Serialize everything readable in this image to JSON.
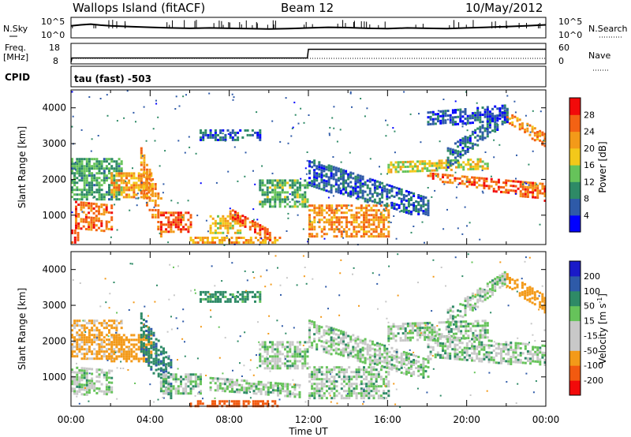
{
  "header": {
    "station": "Wallops Island (fitACF)",
    "beam": "Beam 12",
    "date": "10/May/2012"
  },
  "strip_labels": {
    "nsky": "N.Sky",
    "nsearch": "N.Search",
    "freq": "Freq.",
    "mhz": "[MHz]",
    "nave": "Nave",
    "cpid": "CPID",
    "cpid_value": "tau (fast) -503"
  },
  "colors": {
    "power": [
      "#0000ff",
      "#2e5aa8",
      "#2e8a66",
      "#66c35a",
      "#f3c81a",
      "#f39a19",
      "#f36214",
      "#f20a0a"
    ],
    "velocity": [
      "#f20a0a",
      "#f25a10",
      "#f39a19",
      "#c8c8c8",
      "#c8c8c8",
      "#66c35a",
      "#2e8a66",
      "#2e5aa8",
      "#1a1ac8"
    ]
  },
  "chart_data": [
    {
      "type": "line",
      "title": "N.Sky / N.Search",
      "yticks": [
        "10^5",
        "10^0"
      ],
      "right_yticks": [
        "10^5",
        "10^0"
      ],
      "ylim": [
        0,
        5
      ],
      "series": [
        {
          "name": "N.Sky",
          "x": [
            0,
            0.5,
            1,
            1.5,
            2,
            3,
            4,
            5,
            6,
            7,
            8,
            9,
            10,
            11,
            12,
            13,
            14,
            15,
            16,
            17,
            18,
            19,
            20,
            21,
            22,
            23,
            24
          ],
          "values": [
            3.0,
            3.3,
            3.5,
            3.2,
            3.0,
            2.8,
            2.6,
            2.4,
            2.3,
            2.4,
            2.3,
            2.2,
            2.1,
            2.2,
            2.4,
            2.6,
            2.5,
            2.3,
            2.2,
            2.4,
            2.3,
            2.2,
            2.4,
            2.6,
            2.8,
            3.0,
            3.3
          ]
        }
      ]
    },
    {
      "type": "line",
      "title": "Freq. / Nave",
      "yticks": [
        "18",
        "8"
      ],
      "right_yticks": [
        "60",
        "0"
      ],
      "ylim": [
        8,
        18
      ],
      "series": [
        {
          "name": "Freq.",
          "x": [
            0,
            0.05,
            11.95,
            12.0,
            24
          ],
          "values": [
            8,
            10.5,
            10.5,
            15.5,
            15.5
          ]
        }
      ]
    },
    {
      "type": "heatmap",
      "name": "power",
      "ylabel": "Slant Range [km]",
      "yticks": [
        "1000",
        "2000",
        "3000",
        "4000"
      ],
      "ylim": [
        180,
        4500
      ],
      "colorbar_label": "Power [dB]",
      "colorbar_ticks": [
        "4",
        "8",
        "12",
        "16",
        "20",
        "24",
        "28"
      ],
      "colorbar_range": [
        0,
        30
      ],
      "bands": [
        {
          "t0": 0.0,
          "t1": 0.3,
          "r0": 200,
          "r1": 600,
          "r_end0": 200,
          "r_end1": 600,
          "level": 27
        },
        {
          "t0": 0.2,
          "t1": 2.0,
          "r0": 600,
          "r1": 1400,
          "r_end0": 500,
          "r_end1": 1300,
          "level": 24
        },
        {
          "t0": 0.0,
          "t1": 2.5,
          "r0": 1400,
          "r1": 2600,
          "r_end0": 1400,
          "r_end1": 2600,
          "level": 11
        },
        {
          "t0": 2.0,
          "t1": 4.0,
          "r0": 1500,
          "r1": 2200,
          "r_end0": 1500,
          "r_end1": 2200,
          "level": 20
        },
        {
          "t0": 3.5,
          "t1": 4.5,
          "r0": 1600,
          "r1": 2900,
          "r_end0": 400,
          "r_end1": 1500,
          "level": 22
        },
        {
          "t0": 4.5,
          "t1": 6.0,
          "r0": 500,
          "r1": 1100,
          "r_end0": 500,
          "r_end1": 1100,
          "level": 25
        },
        {
          "t0": 6.0,
          "t1": 10.5,
          "r0": 180,
          "r1": 400,
          "r_end0": 180,
          "r_end1": 400,
          "level": 20
        },
        {
          "t0": 7.0,
          "t1": 8.5,
          "r0": 500,
          "r1": 1000,
          "r_end0": 500,
          "r_end1": 1000,
          "level": 18
        },
        {
          "t0": 8.0,
          "t1": 10.0,
          "r0": 900,
          "r1": 1200,
          "r_end0": 300,
          "r_end1": 600,
          "level": 24
        },
        {
          "t0": 6.5,
          "t1": 9.5,
          "r0": 3100,
          "r1": 3400,
          "r_end0": 3100,
          "r_end1": 3400,
          "level": 6
        },
        {
          "t0": 9.5,
          "t1": 11.9,
          "r0": 1200,
          "r1": 2000,
          "r_end0": 1200,
          "r_end1": 2000,
          "level": 12
        },
        {
          "t0": 12.0,
          "t1": 16.0,
          "r0": 400,
          "r1": 1300,
          "r_end0": 400,
          "r_end1": 1300,
          "level": 22
        },
        {
          "t0": 12.0,
          "t1": 18.0,
          "r0": 1800,
          "r1": 2600,
          "r_end0": 900,
          "r_end1": 1500,
          "level": 6
        },
        {
          "t0": 16.0,
          "t1": 21.0,
          "r0": 2200,
          "r1": 2500,
          "r_end0": 2300,
          "r_end1": 2600,
          "level": 16
        },
        {
          "t0": 18.0,
          "t1": 23.9,
          "r0": 2000,
          "r1": 2200,
          "r_end0": 1400,
          "r_end1": 1900,
          "level": 24
        },
        {
          "t0": 19.0,
          "t1": 22.0,
          "r0": 2300,
          "r1": 2900,
          "r_end0": 3600,
          "r_end1": 4000,
          "level": 7
        },
        {
          "t0": 22.0,
          "t1": 23.9,
          "r0": 3600,
          "r1": 3900,
          "r_end0": 2900,
          "r_end1": 3300,
          "level": 22
        },
        {
          "t0": 18.0,
          "t1": 22.0,
          "r0": 3500,
          "r1": 3900,
          "r_end0": 3600,
          "r_end1": 4100,
          "level": 5
        }
      ]
    },
    {
      "type": "heatmap",
      "name": "velocity",
      "ylabel": "Slant Range [km]",
      "xlabel": "Time UT",
      "xticks": [
        "00:00",
        "04:00",
        "08:00",
        "12:00",
        "16:00",
        "20:00",
        "00:00"
      ],
      "yticks": [
        "1000",
        "2000",
        "3000",
        "4000"
      ],
      "ylim": [
        180,
        4500
      ],
      "colorbar_label": "Velocity [m s-1]",
      "colorbar_label_prefix": "Velocity [m s",
      "colorbar_label_sup": "-1",
      "colorbar_label_suffix": "]",
      "colorbar_ticks": [
        "-200",
        "-100",
        "-50",
        "-15",
        "15",
        "50",
        "100",
        "200"
      ],
      "colorbar_range": [
        -250,
        250
      ],
      "bands": [
        {
          "t0": 0.0,
          "t1": 2.0,
          "r0": 500,
          "r1": 1300,
          "r_end0": 500,
          "r_end1": 1200,
          "level": 0
        },
        {
          "t0": 0.0,
          "t1": 2.5,
          "r0": 1500,
          "r1": 2600,
          "r_end0": 1500,
          "r_end1": 2600,
          "level": -60
        },
        {
          "t0": 2.0,
          "t1": 4.0,
          "r0": 1400,
          "r1": 2200,
          "r_end0": 1400,
          "r_end1": 2200,
          "level": -70
        },
        {
          "t0": 3.5,
          "t1": 5.0,
          "r0": 1600,
          "r1": 2800,
          "r_end0": 400,
          "r_end1": 1500,
          "level": 40
        },
        {
          "t0": 4.5,
          "t1": 6.5,
          "r0": 500,
          "r1": 1100,
          "r_end0": 500,
          "r_end1": 1100,
          "level": 0
        },
        {
          "t0": 6.0,
          "t1": 10.5,
          "r0": 180,
          "r1": 350,
          "r_end0": 180,
          "r_end1": 350,
          "level": -150
        },
        {
          "t0": 7.0,
          "t1": 11.5,
          "r0": 600,
          "r1": 1000,
          "r_end0": 400,
          "r_end1": 800,
          "level": 0
        },
        {
          "t0": 6.5,
          "t1": 9.5,
          "r0": 3100,
          "r1": 3400,
          "r_end0": 3100,
          "r_end1": 3400,
          "level": 30
        },
        {
          "t0": 9.5,
          "t1": 11.9,
          "r0": 1200,
          "r1": 2000,
          "r_end0": 1200,
          "r_end1": 2000,
          "level": 0
        },
        {
          "t0": 12.0,
          "t1": 16.0,
          "r0": 400,
          "r1": 1300,
          "r_end0": 400,
          "r_end1": 1300,
          "level": 0
        },
        {
          "t0": 12.0,
          "t1": 18.0,
          "r0": 1800,
          "r1": 2600,
          "r_end0": 900,
          "r_end1": 1500,
          "level": 0
        },
        {
          "t0": 16.0,
          "t1": 21.0,
          "r0": 2000,
          "r1": 2500,
          "r_end0": 2100,
          "r_end1": 2600,
          "level": 0
        },
        {
          "t0": 18.0,
          "t1": 23.9,
          "r0": 1500,
          "r1": 2200,
          "r_end0": 1300,
          "r_end1": 1900,
          "level": 0
        },
        {
          "t0": 19.0,
          "t1": 22.0,
          "r0": 2300,
          "r1": 2900,
          "r_end0": 3600,
          "r_end1": 4000,
          "level": 0
        },
        {
          "t0": 22.0,
          "t1": 23.9,
          "r0": 3500,
          "r1": 3900,
          "r_end0": 2800,
          "r_end1": 3300,
          "level": -80
        }
      ]
    }
  ]
}
